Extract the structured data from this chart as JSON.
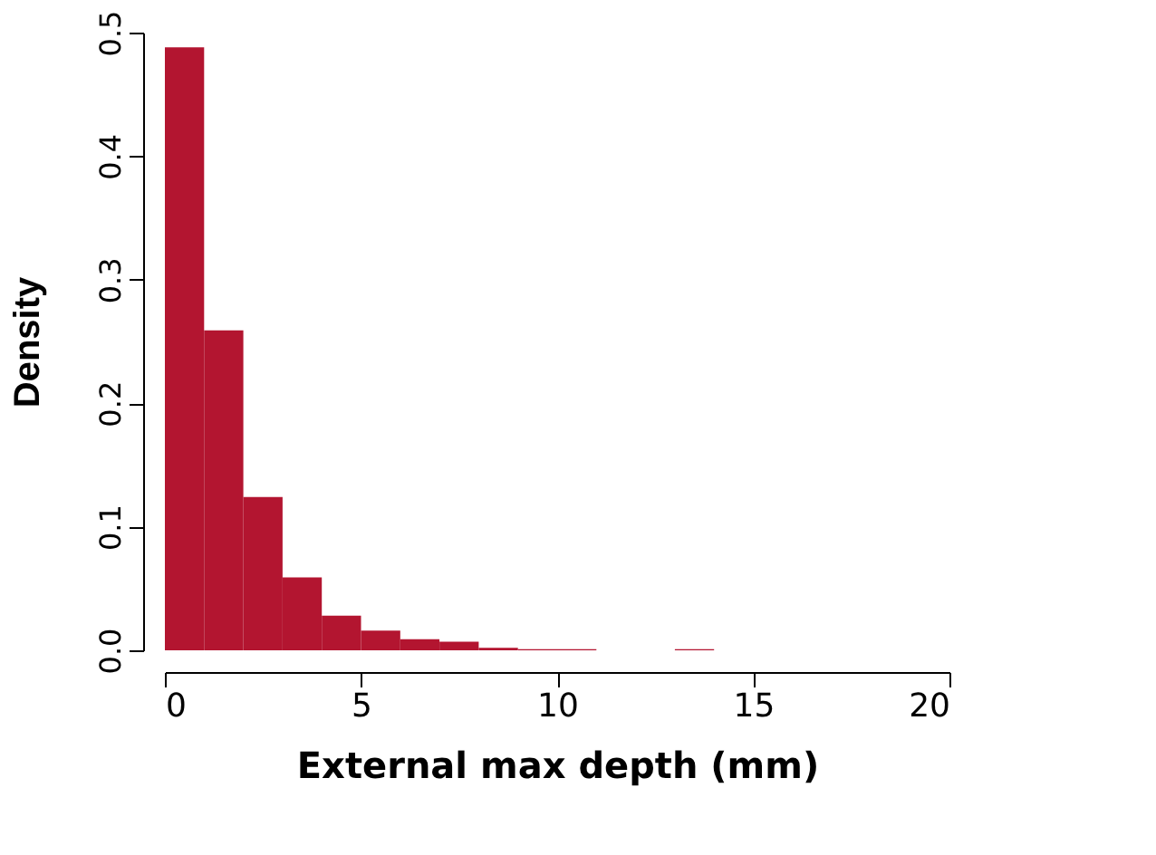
{
  "chart_data": {
    "type": "histogram",
    "xlabel": "External max depth (mm)",
    "ylabel": "Density",
    "color": "#b31530",
    "bins": [
      0,
      1,
      2,
      3,
      4,
      5,
      6,
      7,
      8,
      9,
      10,
      11,
      12,
      13,
      14
    ],
    "values": [
      0.488,
      0.259,
      0.124,
      0.059,
      0.028,
      0.016,
      0.009,
      0.007,
      0.002,
      0.001,
      0.001,
      0,
      0,
      0.001
    ],
    "xlim": [
      0,
      20
    ],
    "xticks": [
      0,
      5,
      10,
      15,
      20
    ],
    "ylim": [
      0,
      0.5
    ],
    "yticks": [
      {
        "value": 0,
        "label": "0.0"
      },
      {
        "value": 0.1,
        "label": "0.1"
      },
      {
        "value": 0.2,
        "label": "0.2"
      },
      {
        "value": 0.3,
        "label": "0.3"
      },
      {
        "value": 0.4,
        "label": "0.4"
      },
      {
        "value": 0.5,
        "label": "0.5"
      }
    ],
    "grid": false
  }
}
